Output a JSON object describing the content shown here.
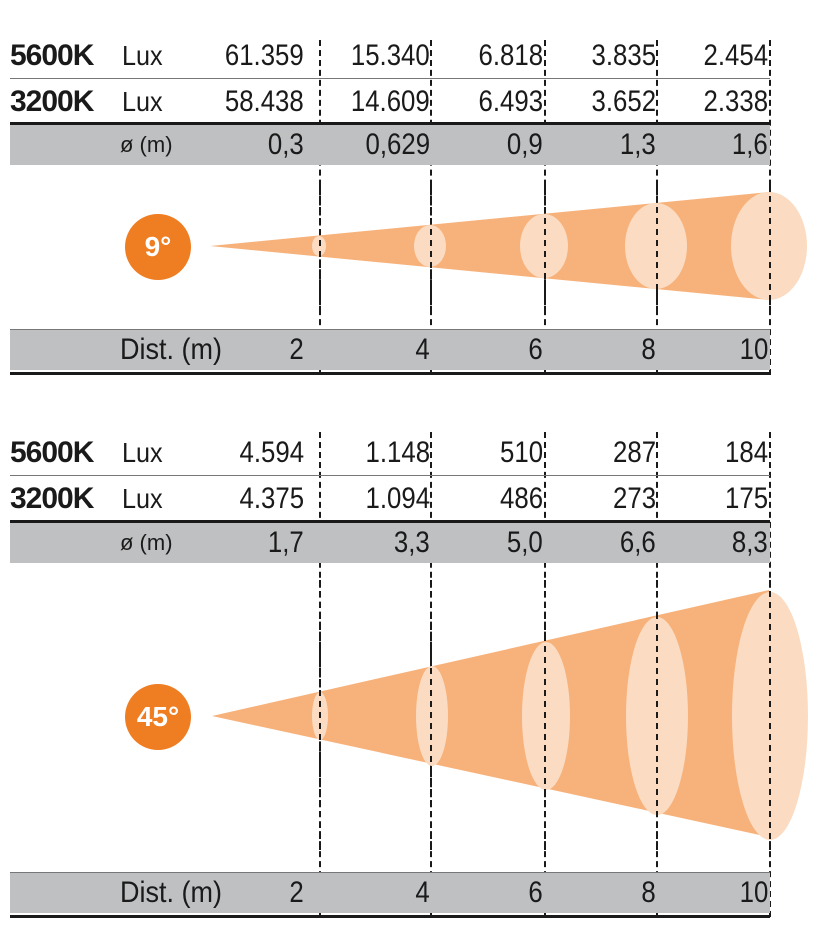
{
  "colors": {
    "beam": "#f7b27b",
    "beam_ellipse": "#fbdcc2",
    "badge": "#ef7d22",
    "band": "#bfc0c2"
  },
  "panels": [
    {
      "angle": "9°",
      "lux_unit": "Lux",
      "rows": [
        {
          "label": "5600K",
          "values": [
            "61.359",
            "15.340",
            "6.818",
            "3.835",
            "2.454"
          ]
        },
        {
          "label": "3200K",
          "values": [
            "58.438",
            "14.609",
            "6.493",
            "3.652",
            "2.338"
          ]
        }
      ],
      "diameter_label": "ø (m)",
      "diameters": [
        "0,3",
        "0,629",
        "0,9",
        "1,3",
        "1,6"
      ],
      "distance_label": "Dist. (m)",
      "distances": [
        "2",
        "4",
        "6",
        "8",
        "10"
      ]
    },
    {
      "angle": "45°",
      "lux_unit": "Lux",
      "rows": [
        {
          "label": "5600K",
          "values": [
            "4.594",
            "1.148",
            "510",
            "287",
            "184"
          ]
        },
        {
          "label": "3200K",
          "values": [
            "4.375",
            "1.094",
            "486",
            "273",
            "175"
          ]
        }
      ],
      "diameter_label": "ø (m)",
      "diameters": [
        "1,7",
        "3,3",
        "5,0",
        "6,6",
        "8,3"
      ],
      "distance_label": "Dist. (m)",
      "distances": [
        "2",
        "4",
        "6",
        "8",
        "10"
      ]
    }
  ]
}
